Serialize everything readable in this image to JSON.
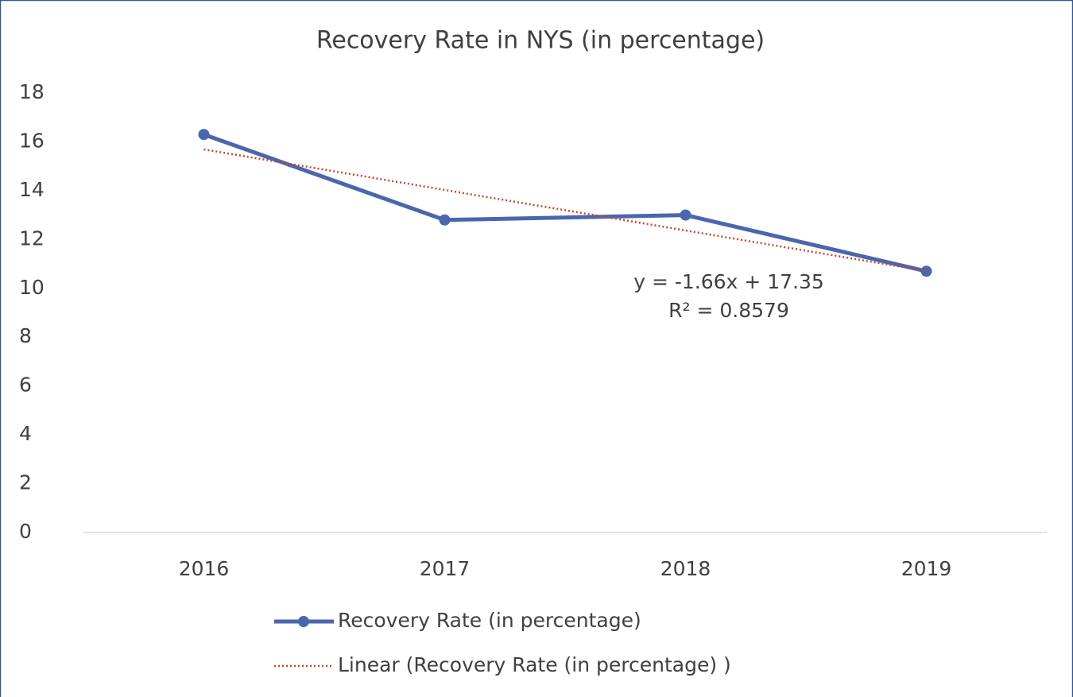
{
  "chart_data": {
    "type": "line",
    "title": "Recovery Rate in NYS (in percentage)",
    "categories": [
      "2016",
      "2017",
      "2018",
      "2019"
    ],
    "series": [
      {
        "name": "Recovery Rate (in percentage)",
        "color": "#4a66ac",
        "style": "solid",
        "markers": true,
        "values": [
          16.3,
          12.8,
          13.0,
          10.7
        ]
      },
      {
        "name": "Linear (Recovery Rate (in percentage) )",
        "color": "#c9442c",
        "style": "dotted",
        "markers": false,
        "values": [
          15.69,
          14.03,
          12.37,
          10.71
        ]
      }
    ],
    "annotations": [
      "y = -1.66x + 17.35",
      "R² = 0.8579"
    ],
    "ylim": [
      0,
      18
    ],
    "yticks": [
      0,
      2,
      4,
      6,
      8,
      10,
      12,
      14,
      16,
      18
    ],
    "grid": false,
    "legend": "bottom"
  }
}
